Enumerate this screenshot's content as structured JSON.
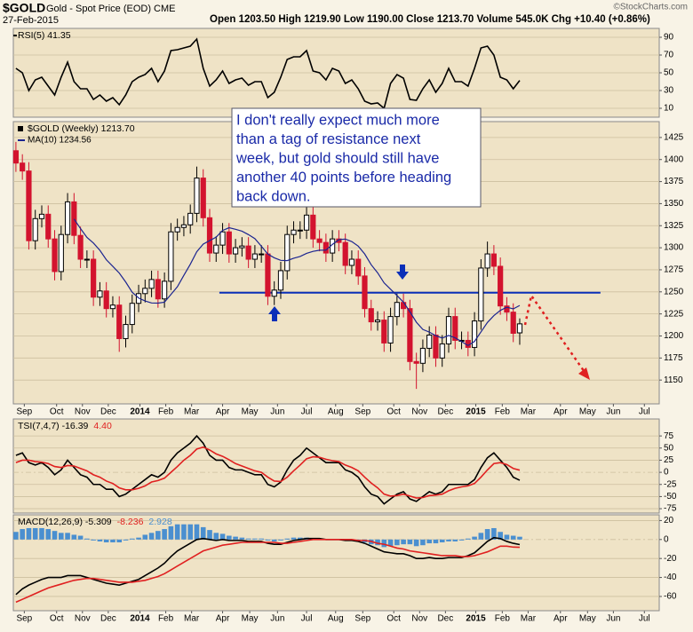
{
  "header": {
    "symbol": "$GOLD",
    "description": "Gold - Spot Price (EOD)  CME",
    "date": "27-Feb-2015",
    "quote": "Open 1203.50  High 1219.90  Low 1190.00  Close 1213.70  Volume 545.0K  Chg +10.40 (+0.86%)",
    "watermark": "©StockCharts.com"
  },
  "annotation": {
    "lines": [
      "I don't really expect much more",
      "than a tag of resistance next",
      "week, but gold should still have",
      "another 40 points before heading",
      "back down."
    ]
  },
  "chart_data": [
    {
      "type": "line",
      "xlim": [
        -0.4,
        99.6
      ],
      "ylim": [
        0,
        100
      ],
      "yticks": [
        10,
        30,
        50,
        70,
        90
      ],
      "grid": true,
      "series": [
        {
          "name": "RSI(5) 41.35",
          "color": "#000000",
          "values": [
            55,
            50,
            30,
            42,
            45,
            35,
            25,
            45,
            62,
            40,
            32,
            32,
            20,
            25,
            18,
            22,
            14,
            25,
            40,
            45,
            48,
            55,
            40,
            52,
            75,
            76,
            78,
            80,
            88,
            55,
            35,
            42,
            52,
            38,
            42,
            44,
            36,
            40,
            40,
            22,
            28,
            45,
            65,
            68,
            68,
            75,
            52,
            50,
            42,
            55,
            52,
            38,
            42,
            32,
            18,
            15,
            16,
            10,
            38,
            48,
            44,
            20,
            19,
            32,
            42,
            28,
            38,
            55,
            40,
            40,
            35,
            55,
            78,
            80,
            70,
            45,
            42,
            32,
            41.35
          ]
        }
      ]
    },
    {
      "type": "candlestick",
      "name": "$GOLD (Weekly) 1213.70",
      "up_color": "#000000",
      "down_color": "#d3132e",
      "xlim": [
        -0.4,
        99.6
      ],
      "ylim": [
        1123,
        1443
      ],
      "yticks": [
        1150,
        1175,
        1200,
        1225,
        1250,
        1275,
        1300,
        1325,
        1350,
        1375,
        1400,
        1425
      ],
      "grid": true,
      "xticks": [
        {
          "value": 1.3,
          "label": "Sep"
        },
        {
          "value": 6.3,
          "label": "Oct"
        },
        {
          "value": 10.3,
          "label": "Nov"
        },
        {
          "value": 14.3,
          "label": "Dec"
        },
        {
          "value": 19.2,
          "label": "2014",
          "bold": true
        },
        {
          "value": 23.2,
          "label": "Feb"
        },
        {
          "value": 27.2,
          "label": "Mar"
        },
        {
          "value": 32,
          "label": "Apr"
        },
        {
          "value": 36.2,
          "label": "May"
        },
        {
          "value": 40.5,
          "label": "Jun"
        },
        {
          "value": 45,
          "label": "Jul"
        },
        {
          "value": 49.5,
          "label": "Aug"
        },
        {
          "value": 53.7,
          "label": "Sep"
        },
        {
          "value": 58.5,
          "label": "Oct"
        },
        {
          "value": 62.5,
          "label": "Nov"
        },
        {
          "value": 66.5,
          "label": "Dec"
        },
        {
          "value": 71.2,
          "label": "2015",
          "bold": true
        },
        {
          "value": 75.3,
          "label": "Feb"
        },
        {
          "value": 79.3,
          "label": "Mar"
        },
        {
          "value": 84.3,
          "label": "Apr"
        },
        {
          "value": 88.5,
          "label": "May"
        },
        {
          "value": 92.5,
          "label": "Jun"
        },
        {
          "value": 97.3,
          "label": "Jul"
        }
      ],
      "open": [
        1410,
        1396,
        1387,
        1308,
        1333,
        1338,
        1310,
        1273,
        1315,
        1352,
        1314,
        1287,
        1287,
        1244,
        1251,
        1231,
        1235,
        1197,
        1213,
        1237,
        1248,
        1254,
        1264,
        1242,
        1262,
        1318,
        1323,
        1326,
        1339,
        1379,
        1334,
        1294,
        1303,
        1318,
        1293,
        1300,
        1302,
        1287,
        1293,
        1293,
        1245,
        1252,
        1274,
        1315,
        1320,
        1320,
        1337,
        1310,
        1306,
        1294,
        1310,
        1306,
        1280,
        1287,
        1268,
        1231,
        1216,
        1218,
        1192,
        1222,
        1238,
        1231,
        1171,
        1169,
        1186,
        1201,
        1175,
        1191,
        1222,
        1195,
        1195,
        1187,
        1217,
        1277,
        1293,
        1279,
        1234,
        1227,
        1203.5
      ],
      "high": [
        1420,
        1406,
        1397,
        1343,
        1348,
        1348,
        1320,
        1325,
        1362,
        1362,
        1324,
        1297,
        1297,
        1261,
        1261,
        1245,
        1245,
        1223,
        1247,
        1258,
        1264,
        1274,
        1274,
        1272,
        1328,
        1333,
        1336,
        1349,
        1392,
        1389,
        1344,
        1313,
        1328,
        1328,
        1310,
        1312,
        1312,
        1303,
        1303,
        1303,
        1262,
        1284,
        1325,
        1330,
        1330,
        1347,
        1347,
        1320,
        1316,
        1320,
        1320,
        1316,
        1297,
        1297,
        1278,
        1241,
        1228,
        1228,
        1232,
        1248,
        1248,
        1241,
        1181,
        1196,
        1211,
        1211,
        1201,
        1232,
        1232,
        1205,
        1205,
        1227,
        1287,
        1307,
        1303,
        1289,
        1244,
        1237,
        1219.9
      ],
      "low": [
        1386,
        1377,
        1298,
        1298,
        1323,
        1300,
        1263,
        1263,
        1305,
        1304,
        1277,
        1277,
        1234,
        1234,
        1221,
        1221,
        1182,
        1187,
        1203,
        1227,
        1238,
        1244,
        1232,
        1232,
        1252,
        1308,
        1313,
        1316,
        1329,
        1324,
        1284,
        1284,
        1293,
        1283,
        1283,
        1290,
        1277,
        1277,
        1283,
        1235,
        1235,
        1242,
        1264,
        1305,
        1310,
        1310,
        1300,
        1296,
        1284,
        1284,
        1296,
        1270,
        1270,
        1258,
        1221,
        1206,
        1206,
        1182,
        1182,
        1212,
        1221,
        1161,
        1140,
        1159,
        1176,
        1165,
        1165,
        1181,
        1185,
        1185,
        1177,
        1177,
        1207,
        1267,
        1269,
        1224,
        1217,
        1193,
        1190
      ],
      "close": [
        1396,
        1387,
        1308,
        1333,
        1338,
        1310,
        1273,
        1315,
        1352,
        1314,
        1287,
        1287,
        1244,
        1251,
        1231,
        1235,
        1197,
        1213,
        1237,
        1248,
        1254,
        1264,
        1242,
        1262,
        1318,
        1323,
        1326,
        1339,
        1379,
        1334,
        1294,
        1303,
        1318,
        1293,
        1300,
        1302,
        1287,
        1293,
        1293,
        1245,
        1252,
        1274,
        1315,
        1320,
        1320,
        1337,
        1310,
        1306,
        1294,
        1310,
        1306,
        1280,
        1287,
        1268,
        1231,
        1216,
        1218,
        1192,
        1222,
        1238,
        1231,
        1171,
        1169,
        1186,
        1201,
        1175,
        1191,
        1222,
        1195,
        1195,
        1187,
        1217,
        1277,
        1293,
        1279,
        1234,
        1227,
        1203,
        1213.7
      ],
      "series": [
        {
          "name": "MA(10) 1234.56",
          "color": "#1c2590",
          "values": [
            null,
            null,
            null,
            null,
            null,
            null,
            null,
            null,
            null,
            1332.6,
            1321.7,
            1311.7,
            1305.3,
            1297.1,
            1286.4,
            1278.9,
            1271.3,
            1261.1,
            1249.6,
            1243.0,
            1239.7,
            1237.4,
            1237.2,
            1238.3,
            1247.0,
            1255.8,
            1268.7,
            1281.3,
            1295.5,
            1304.1,
            1308.1,
            1312.0,
            1319.6,
            1322.7,
            1320.9,
            1318.8,
            1314.9,
            1310.3,
            1301.7,
            1292.8,
            1288.6,
            1285.7,
            1285.4,
            1288.1,
            1290.1,
            1293.6,
            1295.9,
            1297.2,
            1297.3,
            1303.8,
            1309.2,
            1309.8,
            1307.0,
            1301.8,
            1292.9,
            1280.8,
            1271.6,
            1260.2,
            1253.0,
            1245.8,
            1238.3,
            1227.4,
            1215.6,
            1207.4,
            1204.4,
            1200.3,
            1197.6,
            1200.6,
            1197.9,
            1193.6,
            1189.2,
            1193.8,
            1204.6,
            1215.3,
            1223.1,
            1229.0,
            1232.6,
            1230.7,
            1234.56
          ]
        }
      ],
      "resistance": {
        "value": 1249,
        "x": [
          31.5,
          90.5
        ],
        "color": "#0a2fb8"
      }
    },
    {
      "type": "line",
      "xlim": [
        -0.4,
        99.6
      ],
      "ylim": [
        -84,
        110
      ],
      "yticks": [
        75,
        50,
        25,
        0,
        -25,
        -50,
        -75
      ],
      "grid": true,
      "series": [
        {
          "name": "TSI(7,4,7) -16.39",
          "color": "#000000",
          "values": [
            35,
            40,
            20,
            15,
            20,
            10,
            -5,
            5,
            25,
            10,
            -5,
            -10,
            -25,
            -25,
            -35,
            -35,
            -50,
            -45,
            -35,
            -25,
            -15,
            -5,
            -10,
            0,
            25,
            40,
            50,
            60,
            75,
            60,
            35,
            25,
            25,
            10,
            5,
            5,
            0,
            -5,
            -5,
            -25,
            -30,
            -20,
            5,
            25,
            35,
            50,
            40,
            30,
            20,
            20,
            20,
            5,
            0,
            -10,
            -30,
            -45,
            -50,
            -65,
            -55,
            -45,
            -40,
            -55,
            -60,
            -50,
            -40,
            -45,
            -40,
            -25,
            -25,
            -25,
            -25,
            -15,
            10,
            30,
            40,
            25,
            10,
            -10,
            -16.39
          ]
        },
        {
          "name": "4.40",
          "color": "#e02020",
          "values": [
            20,
            25,
            25,
            22,
            21,
            18,
            12,
            10,
            14,
            13,
            8,
            3,
            -5,
            -10,
            -18,
            -23,
            -32,
            -36,
            -36,
            -33,
            -28,
            -20,
            -17,
            -12,
            0,
            12,
            25,
            35,
            48,
            52,
            46,
            38,
            33,
            26,
            18,
            13,
            8,
            3,
            0,
            -10,
            -18,
            -19,
            -10,
            3,
            15,
            28,
            32,
            31,
            27,
            24,
            22,
            15,
            10,
            3,
            -10,
            -22,
            -32,
            -45,
            -49,
            -48,
            -45,
            -49,
            -53,
            -52,
            -48,
            -47,
            -45,
            -38,
            -33,
            -30,
            -28,
            -23,
            -10,
            5,
            18,
            20,
            16,
            8,
            4.4
          ]
        }
      ]
    },
    {
      "type": "macd",
      "xlim": [
        -0.4,
        99.6
      ],
      "ylim": [
        -75,
        26
      ],
      "yticks": [
        20,
        0,
        -20,
        -40,
        -60
      ],
      "grid": true,
      "series": [
        {
          "name": "MACD(12,26,9) -5.309",
          "color": "#000000",
          "values": [
            -58,
            -52,
            -48,
            -45,
            -42,
            -40,
            -40,
            -40,
            -38,
            -38,
            -38,
            -40,
            -42,
            -44,
            -46,
            -47,
            -48,
            -46,
            -44,
            -42,
            -38,
            -34,
            -30,
            -25,
            -18,
            -12,
            -8,
            -4,
            0,
            1,
            0,
            -1,
            0,
            -1,
            -1,
            -1,
            -2,
            -2,
            -2,
            -4,
            -5,
            -5,
            -3,
            -1,
            0,
            1,
            1,
            1,
            0,
            0,
            0,
            -1,
            -1,
            -2,
            -4,
            -7,
            -10,
            -13,
            -14,
            -15,
            -15,
            -17,
            -20,
            -20,
            -19,
            -20,
            -20,
            -19,
            -19,
            -19,
            -17,
            -14,
            -8,
            -2,
            2,
            1,
            -2,
            -4,
            -5.309
          ]
        },
        {
          "name": "-8.236",
          "color": "#e02020",
          "values": [
            -66,
            -63,
            -60,
            -57,
            -54,
            -51,
            -49,
            -47,
            -45,
            -43,
            -42,
            -41,
            -41,
            -42,
            -43,
            -44,
            -45,
            -45,
            -45,
            -44,
            -43,
            -41,
            -39,
            -36,
            -32,
            -28,
            -24,
            -20,
            -16,
            -12,
            -10,
            -8,
            -6,
            -5,
            -4,
            -3,
            -3,
            -3,
            -3,
            -3,
            -3,
            -4,
            -4,
            -3,
            -2,
            -1,
            0,
            0,
            0,
            0,
            0,
            0,
            0,
            -1,
            -1,
            -2,
            -4,
            -5,
            -7,
            -9,
            -10,
            -12,
            -13,
            -14,
            -15,
            -16,
            -17,
            -17,
            -17,
            -18,
            -18,
            -17,
            -15,
            -13,
            -10,
            -7,
            -7,
            -8,
            -8.236
          ]
        },
        {
          "name": "2.928",
          "color": "#4a8fd0",
          "kind": "bar",
          "values": [
            8,
            11,
            12,
            12,
            12,
            11,
            9,
            7,
            7,
            5,
            4,
            1,
            -1,
            -2,
            -3,
            -3,
            -3,
            -1,
            1,
            2,
            5,
            7,
            9,
            11,
            14,
            16,
            16,
            16,
            16,
            13,
            10,
            7,
            6,
            4,
            3,
            2,
            1,
            1,
            1,
            -1,
            -2,
            -1,
            1,
            2,
            2,
            2,
            1,
            1,
            0,
            0,
            0,
            -1,
            -1,
            -1,
            -3,
            -5,
            -6,
            -8,
            -7,
            -6,
            -5,
            -5,
            -7,
            -6,
            -4,
            -4,
            -3,
            -2,
            -2,
            -1,
            1,
            3,
            7,
            11,
            12,
            8,
            5,
            4,
            2.928
          ]
        }
      ]
    }
  ]
}
